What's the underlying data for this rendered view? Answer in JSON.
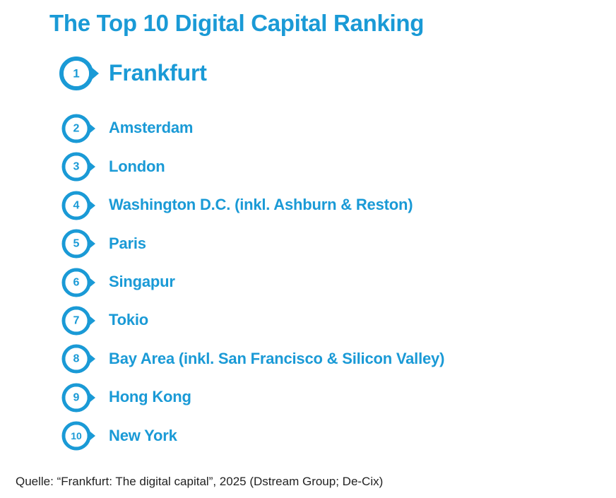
{
  "chart_data": {
    "type": "table",
    "title": "The Top 10 Digital Capital Ranking",
    "rows": [
      {
        "rank": "1",
        "city": "Frankfurt"
      },
      {
        "rank": "2",
        "city": "Amsterdam"
      },
      {
        "rank": "3",
        "city": "London"
      },
      {
        "rank": "4",
        "city": "Washington D.C. (inkl. Ashburn & Reston)"
      },
      {
        "rank": "5",
        "city": "Paris"
      },
      {
        "rank": "6",
        "city": "Singapur"
      },
      {
        "rank": "7",
        "city": "Tokio"
      },
      {
        "rank": "8",
        "city": "Bay Area (inkl. San Francisco & Silicon Valley)"
      },
      {
        "rank": "9",
        "city": "Hong Kong"
      },
      {
        "rank": "10",
        "city": "New York"
      }
    ],
    "source": "Quelle: “Frankfurt: The digital capital”, 2025 (Dstream Group; De-Cix)"
  },
  "colors": {
    "accent": "#1a9ad6",
    "text": "#222222"
  },
  "icons": {
    "rank_badge": "rank-badge-icon"
  }
}
